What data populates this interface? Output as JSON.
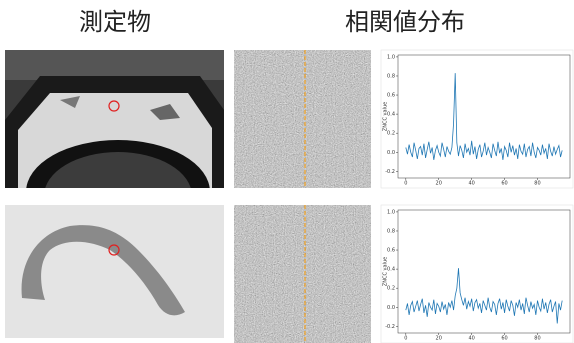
{
  "headers": [
    "測定物",
    "相関値分布"
  ],
  "chart_data": [
    {
      "type": "line",
      "ylabel": "ZNCC value",
      "color": "#1f77b4",
      "xlim": [
        -4.75,
        99.75
      ],
      "xticks": [
        0,
        20,
        40,
        60,
        80
      ],
      "ylim": [
        -0.27,
        1.02
      ],
      "yticks": [
        {
          "value": -0.2,
          "label": "-0.2"
        },
        {
          "value": 0,
          "label": "0.0"
        },
        0.2,
        0.4,
        0.6,
        0.8,
        {
          "value": 1,
          "label": "1.0"
        }
      ],
      "x": [
        0,
        1,
        2,
        3,
        4,
        5,
        6,
        7,
        8,
        9,
        10,
        11,
        12,
        13,
        14,
        15,
        16,
        17,
        18,
        19,
        20,
        21,
        22,
        23,
        24,
        25,
        26,
        27,
        28,
        29,
        30,
        31,
        32,
        33,
        34,
        35,
        36,
        37,
        38,
        39,
        40,
        41,
        42,
        43,
        44,
        45,
        46,
        47,
        48,
        49,
        50,
        51,
        52,
        53,
        54,
        55,
        56,
        57,
        58,
        59,
        60,
        61,
        62,
        63,
        64,
        65,
        66,
        67,
        68,
        69,
        70,
        71,
        72,
        73,
        74,
        75,
        76,
        77,
        78,
        79,
        80,
        81,
        82,
        83,
        84,
        85,
        86,
        87,
        88,
        89,
        90,
        91,
        92,
        93,
        94,
        95
      ],
      "values": [
        0.05,
        -0.02,
        0.08,
        0.0,
        -0.05,
        0.1,
        0.02,
        -0.07,
        0.04,
        0.06,
        -0.03,
        0.09,
        -0.06,
        0.03,
        0.11,
        -0.01,
        0.05,
        -0.08,
        0.02,
        0.07,
        0.0,
        -0.04,
        0.1,
        0.03,
        -0.05,
        0.06,
        0.01,
        -0.02,
        0.05,
        0.3,
        0.83,
        0.1,
        -0.04,
        0.07,
        0.02,
        -0.06,
        0.09,
        0.0,
        0.04,
        -0.03,
        0.12,
        -0.02,
        0.06,
        -0.07,
        0.03,
        0.08,
        -0.05,
        0.01,
        0.1,
        -0.03,
        0.05,
        0.0,
        -0.06,
        0.09,
        0.02,
        -0.04,
        0.11,
        -0.01,
        0.04,
        -0.08,
        0.06,
        0.02,
        -0.05,
        0.1,
        0.0,
        0.07,
        -0.03,
        0.04,
        -0.07,
        0.08,
        0.01,
        -0.02,
        0.09,
        -0.05,
        0.03,
        0.06,
        -0.04,
        0.1,
        0.0,
        -0.06,
        0.05,
        0.02,
        -0.03,
        0.08,
        -0.01,
        0.04,
        -0.07,
        0.09,
        0.01,
        -0.04,
        0.06,
        -0.02,
        0.03,
        0.07,
        -0.05,
        0.02
      ]
    },
    {
      "type": "line",
      "ylabel": "ZNCC value",
      "color": "#1f77b4",
      "xlim": [
        -4.75,
        99.75
      ],
      "xticks": [
        0,
        20,
        40,
        60,
        80
      ],
      "ylim": [
        -0.27,
        1.02
      ],
      "yticks": [
        {
          "value": -0.2,
          "label": "-0.2"
        },
        {
          "value": 0,
          "label": "0.0"
        },
        0.2,
        0.4,
        0.6,
        0.8,
        {
          "value": 1,
          "label": "1.0"
        }
      ],
      "x": [
        0,
        1,
        2,
        3,
        4,
        5,
        6,
        7,
        8,
        9,
        10,
        11,
        12,
        13,
        14,
        15,
        16,
        17,
        18,
        19,
        20,
        21,
        22,
        23,
        24,
        25,
        26,
        27,
        28,
        29,
        30,
        31,
        32,
        33,
        34,
        35,
        36,
        37,
        38,
        39,
        40,
        41,
        42,
        43,
        44,
        45,
        46,
        47,
        48,
        49,
        50,
        51,
        52,
        53,
        54,
        55,
        56,
        57,
        58,
        59,
        60,
        61,
        62,
        63,
        64,
        65,
        66,
        67,
        68,
        69,
        70,
        71,
        72,
        73,
        74,
        75,
        76,
        77,
        78,
        79,
        80,
        81,
        82,
        83,
        84,
        85,
        86,
        87,
        88,
        89,
        90,
        91,
        92,
        93,
        94,
        95
      ],
      "values": [
        -0.03,
        0.04,
        -0.08,
        0.02,
        0.06,
        -0.05,
        0.01,
        0.07,
        -0.04,
        0.03,
        0.09,
        -0.06,
        0.02,
        -0.1,
        0.05,
        0.0,
        -0.03,
        0.08,
        -0.07,
        0.04,
        0.01,
        -0.05,
        0.06,
        -0.02,
        0.03,
        -0.08,
        0.05,
        0.0,
        0.07,
        -0.03,
        0.12,
        0.2,
        0.41,
        0.15,
        0.08,
        0.02,
        0.1,
        -0.02,
        0.06,
        0.01,
        0.09,
        -0.04,
        0.05,
        0.08,
        -0.01,
        0.04,
        -0.06,
        0.07,
        0.02,
        -0.03,
        0.1,
        0.0,
        -0.05,
        0.06,
        0.03,
        -0.08,
        0.04,
        0.09,
        -0.02,
        0.05,
        -0.06,
        0.08,
        0.01,
        -0.04,
        0.07,
        0.02,
        -0.09,
        0.05,
        0.0,
        0.08,
        -0.03,
        0.04,
        -0.07,
        0.1,
        0.02,
        -0.05,
        0.06,
        -0.01,
        0.03,
        -0.08,
        0.07,
        0.0,
        -0.04,
        0.09,
        -0.02,
        0.05,
        -0.06,
        0.03,
        0.08,
        -0.05,
        0.01,
        0.06,
        -0.17,
        0.04,
        -0.03,
        0.07
      ]
    }
  ]
}
